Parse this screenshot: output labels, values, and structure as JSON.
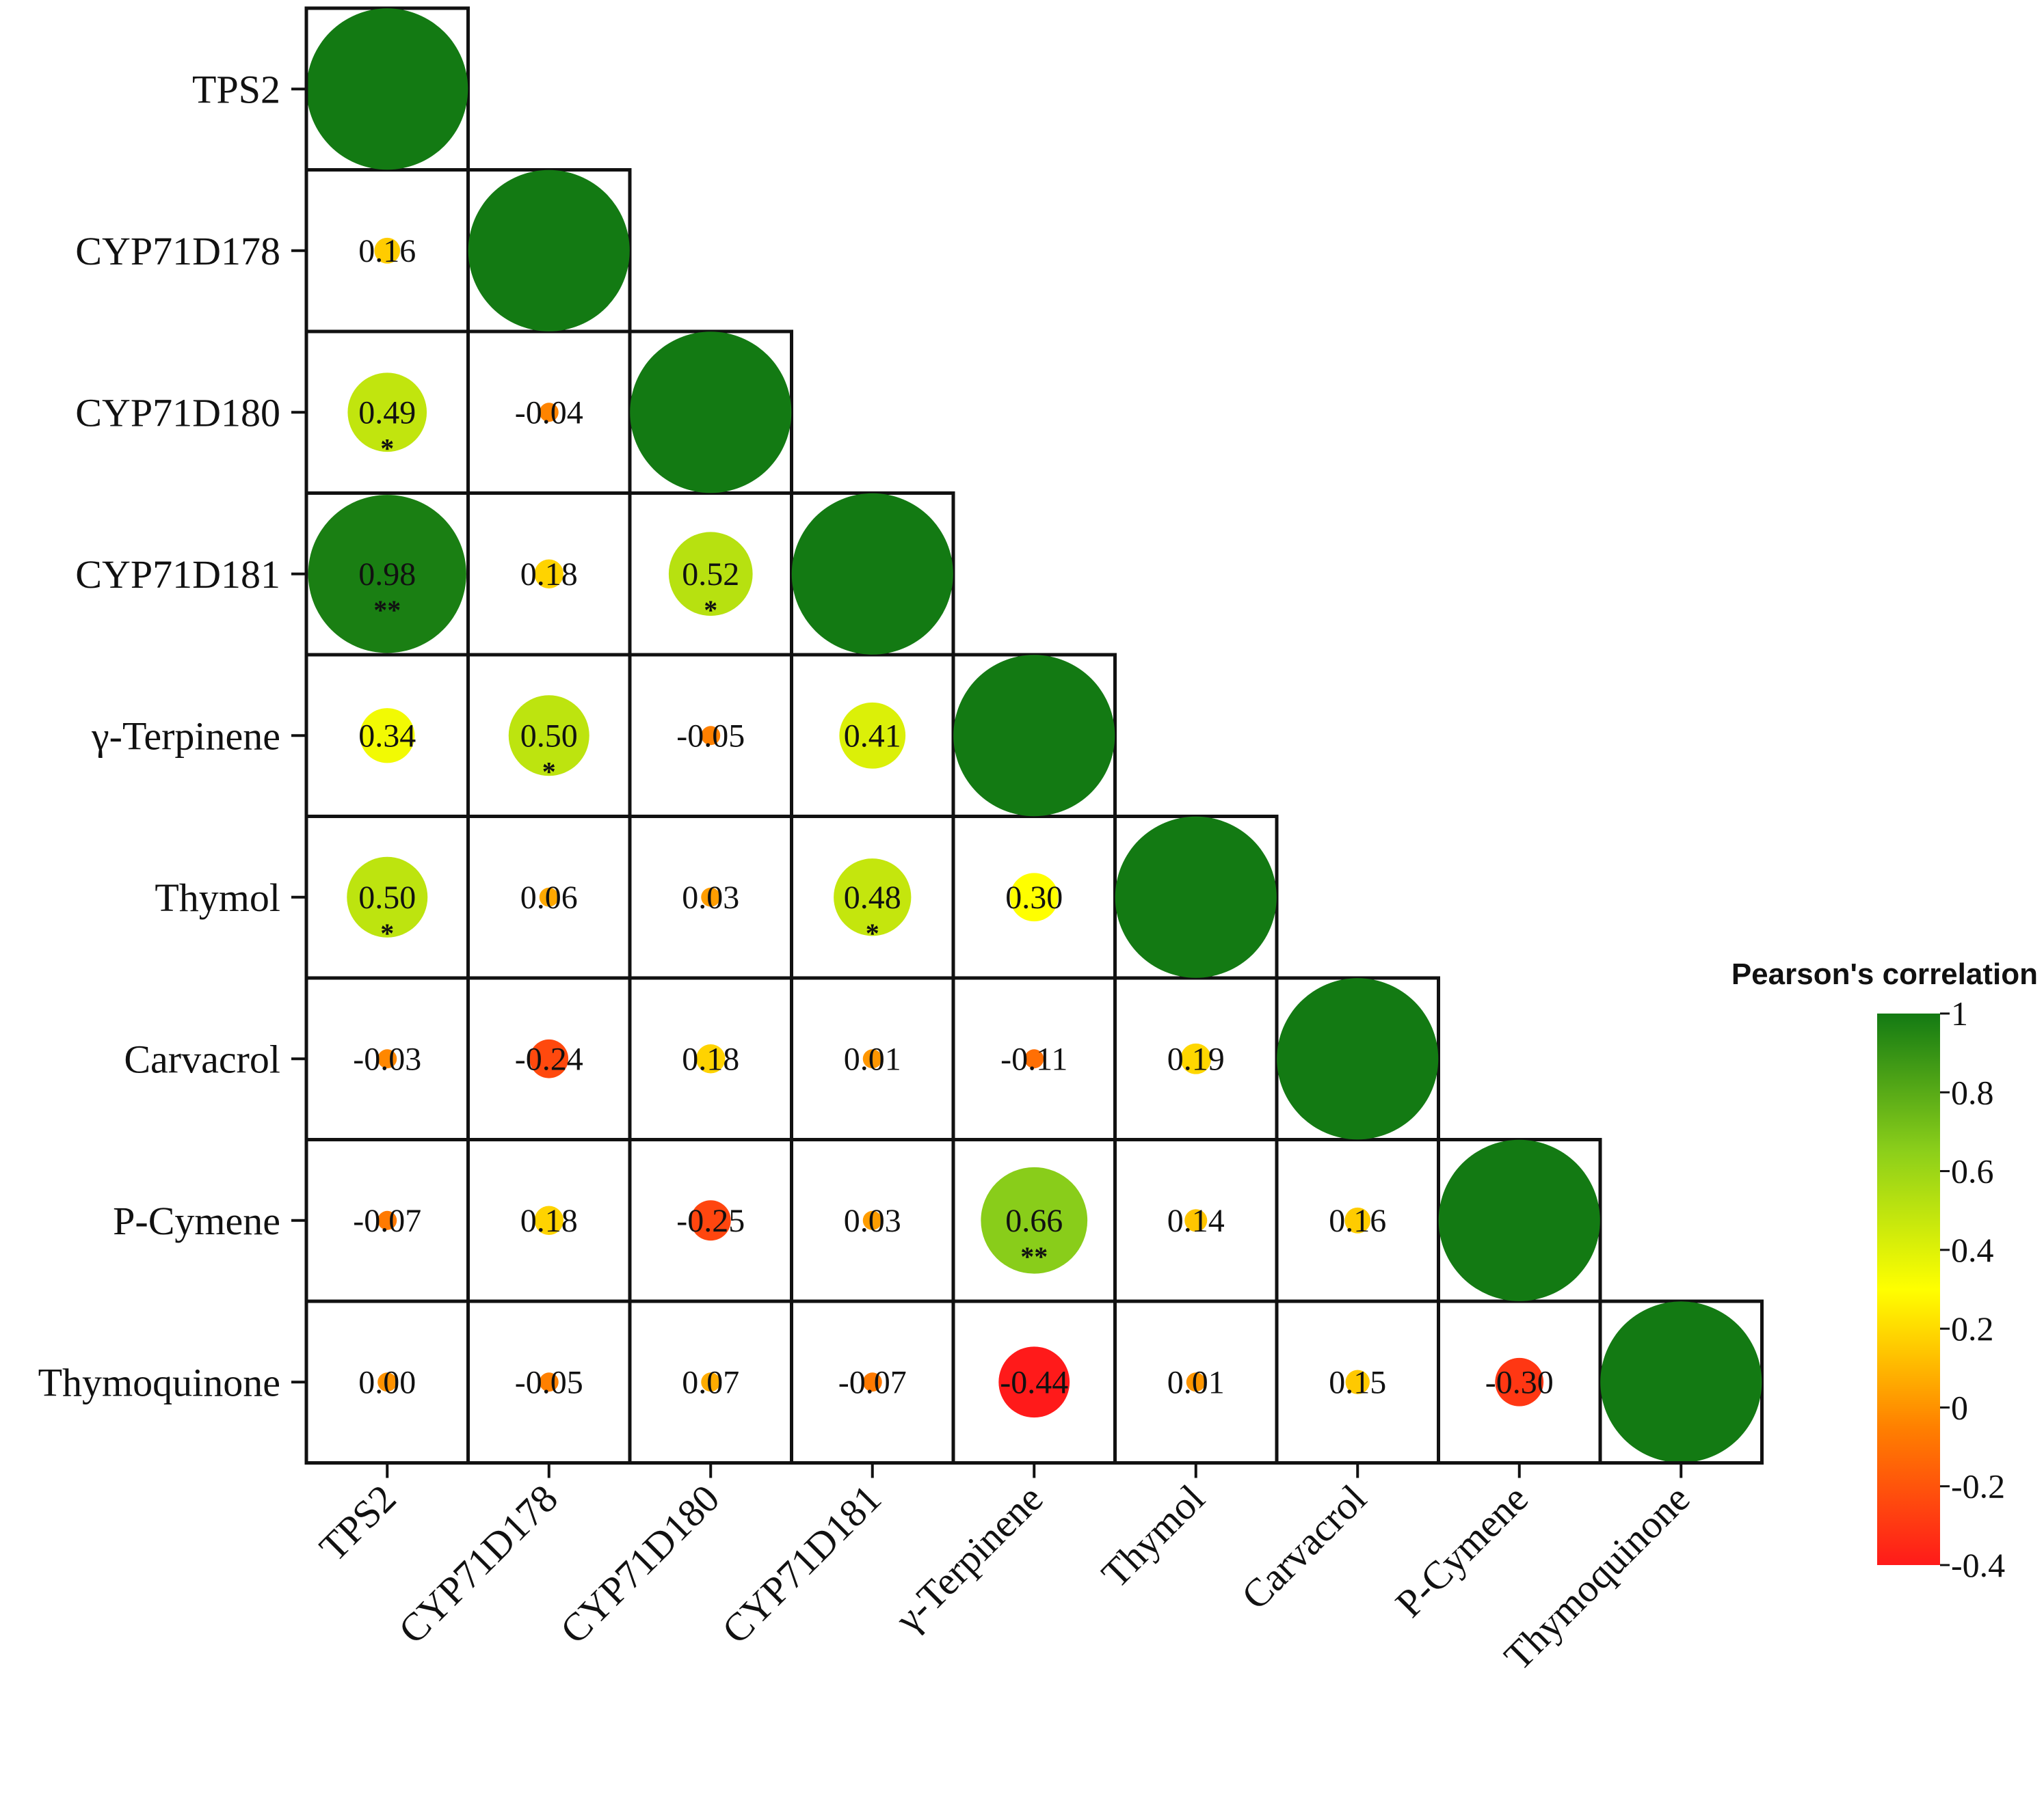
{
  "chart_data": {
    "type": "correlation-matrix",
    "variables": [
      "TPS2",
      "CYP71D178",
      "CYP71D180",
      "CYP71D181",
      "γ-Terpinene",
      "Thymol",
      "Carvacrol",
      "P-Cymene",
      "Thymoquinone"
    ],
    "matrix": [
      [
        1
      ],
      [
        0.16,
        1
      ],
      [
        0.49,
        -0.04,
        1
      ],
      [
        0.98,
        0.18,
        0.52,
        1
      ],
      [
        0.34,
        0.5,
        -0.05,
        0.41,
        1
      ],
      [
        0.5,
        0.06,
        0.03,
        0.48,
        0.3,
        1
      ],
      [
        -0.03,
        -0.24,
        0.18,
        0.01,
        -0.11,
        0.19,
        1
      ],
      [
        -0.07,
        0.18,
        -0.25,
        0.03,
        0.66,
        0.14,
        0.16,
        1
      ],
      [
        0.0,
        -0.05,
        0.07,
        -0.07,
        -0.44,
        0.01,
        0.15,
        -0.3,
        1
      ]
    ],
    "value_labels": [
      [
        ""
      ],
      [
        "0.16",
        ""
      ],
      [
        "0.49",
        "-0.04",
        ""
      ],
      [
        "0.98",
        "0.18",
        "0.52",
        ""
      ],
      [
        "0.34",
        "0.50",
        "-0.05",
        "0.41",
        ""
      ],
      [
        "0.50",
        "0.06",
        "0.03",
        "0.48",
        "0.30",
        ""
      ],
      [
        "-0.03",
        "-0.24",
        "0.18",
        "0.01",
        "-0.11",
        "0.19",
        ""
      ],
      [
        "-0.07",
        "0.18",
        "-0.25",
        "0.03",
        "0.66",
        "0.14",
        "0.16",
        ""
      ],
      [
        "0.00",
        "-0.05",
        "0.07",
        "-0.07",
        "-0.44",
        "0.01",
        "0.15",
        "-0.30",
        ""
      ]
    ],
    "significance": [
      [
        ""
      ],
      [
        "",
        ""
      ],
      [
        "*",
        "",
        ""
      ],
      [
        "**",
        "",
        "*",
        ""
      ],
      [
        "",
        "*",
        "",
        "",
        ""
      ],
      [
        "*",
        "",
        "",
        "*",
        "",
        ""
      ],
      [
        "",
        "",
        "",
        "",
        "",
        "",
        ""
      ],
      [
        "",
        "",
        "",
        "",
        "**",
        "",
        "",
        ""
      ],
      [
        "",
        "",
        "",
        "",
        "",
        "",
        "",
        "",
        ""
      ]
    ],
    "legend": {
      "title": "Pearson's correlation",
      "ticks": [
        "1",
        "0.8",
        "0.6",
        "0.4",
        "0.2",
        "0",
        "-0.2",
        "-0.4"
      ],
      "range": [
        -0.4,
        1
      ],
      "colors": [
        "#ff1a1a",
        "#ff8000",
        "#ffff00",
        "#8ccf1a",
        "#137a13"
      ]
    }
  }
}
